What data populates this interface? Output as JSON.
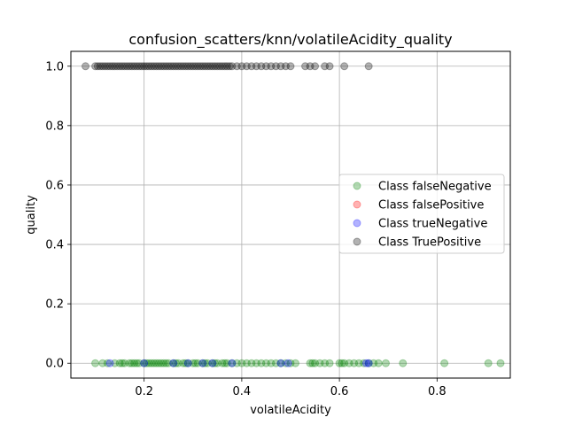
{
  "chart_data": {
    "type": "scatter",
    "title": "confusion_scatters/knn/volatileAcidity_quality",
    "xlabel": "volatileAcidity",
    "ylabel": "quality",
    "xlim": [
      0.05,
      0.95
    ],
    "ylim": [
      -0.05,
      1.05
    ],
    "xticks": [
      0.2,
      0.4,
      0.6,
      0.8
    ],
    "xtick_labels": [
      "0.2",
      "0.4",
      "0.6",
      "0.8"
    ],
    "yticks": [
      0.0,
      0.2,
      0.4,
      0.6,
      0.8,
      1.0
    ],
    "ytick_labels": [
      "0.0",
      "0.2",
      "0.4",
      "0.6",
      "0.8",
      "1.0"
    ],
    "grid": true,
    "legend_position": "center-right",
    "series": [
      {
        "name": "Class falseNegative",
        "color": "#008000",
        "x": [
          0.1,
          0.115,
          0.125,
          0.14,
          0.15,
          0.155,
          0.16,
          0.17,
          0.175,
          0.18,
          0.185,
          0.19,
          0.2,
          0.205,
          0.21,
          0.215,
          0.22,
          0.225,
          0.23,
          0.235,
          0.24,
          0.245,
          0.25,
          0.26,
          0.265,
          0.27,
          0.28,
          0.285,
          0.29,
          0.3,
          0.305,
          0.31,
          0.32,
          0.325,
          0.33,
          0.34,
          0.345,
          0.35,
          0.36,
          0.365,
          0.37,
          0.38,
          0.39,
          0.4,
          0.41,
          0.42,
          0.43,
          0.44,
          0.45,
          0.46,
          0.47,
          0.48,
          0.49,
          0.5,
          0.51,
          0.54,
          0.545,
          0.55,
          0.56,
          0.57,
          0.58,
          0.6,
          0.605,
          0.61,
          0.62,
          0.63,
          0.64,
          0.65,
          0.66,
          0.67,
          0.68,
          0.695,
          0.73,
          0.815,
          0.905,
          0.93
        ],
        "y": [
          0,
          0,
          0,
          0,
          0,
          0,
          0,
          0,
          0,
          0,
          0,
          0,
          0,
          0,
          0,
          0,
          0,
          0,
          0,
          0,
          0,
          0,
          0,
          0,
          0,
          0,
          0,
          0,
          0,
          0,
          0,
          0,
          0,
          0,
          0,
          0,
          0,
          0,
          0,
          0,
          0,
          0,
          0,
          0,
          0,
          0,
          0,
          0,
          0,
          0,
          0,
          0,
          0,
          0,
          0,
          0,
          0,
          0,
          0,
          0,
          0,
          0,
          0,
          0,
          0,
          0,
          0,
          0,
          0,
          0,
          0,
          0,
          0,
          0,
          0,
          0
        ]
      },
      {
        "name": "Class falsePositive",
        "color": "#ff0000",
        "x": [],
        "y": []
      },
      {
        "name": "Class trueNegative",
        "color": "#0000ff",
        "x": [
          0.13,
          0.2,
          0.26,
          0.29,
          0.32,
          0.34,
          0.38,
          0.48,
          0.495,
          0.655,
          0.66
        ],
        "y": [
          0,
          0,
          0,
          0,
          0,
          0,
          0,
          0,
          0,
          0,
          0
        ]
      },
      {
        "name": "Class TruePositive",
        "color": "#000000",
        "x": [
          0.08,
          0.1,
          0.105,
          0.11,
          0.115,
          0.12,
          0.125,
          0.13,
          0.135,
          0.14,
          0.145,
          0.15,
          0.155,
          0.16,
          0.165,
          0.17,
          0.175,
          0.18,
          0.185,
          0.19,
          0.195,
          0.2,
          0.205,
          0.21,
          0.215,
          0.22,
          0.225,
          0.23,
          0.235,
          0.24,
          0.245,
          0.25,
          0.255,
          0.26,
          0.265,
          0.27,
          0.275,
          0.28,
          0.285,
          0.29,
          0.295,
          0.3,
          0.305,
          0.31,
          0.315,
          0.32,
          0.325,
          0.33,
          0.335,
          0.34,
          0.345,
          0.35,
          0.355,
          0.36,
          0.365,
          0.37,
          0.375,
          0.38,
          0.39,
          0.4,
          0.41,
          0.42,
          0.43,
          0.44,
          0.45,
          0.46,
          0.47,
          0.48,
          0.49,
          0.5,
          0.53,
          0.54,
          0.55,
          0.57,
          0.58,
          0.61,
          0.66
        ],
        "y": [
          1,
          1,
          1,
          1,
          1,
          1,
          1,
          1,
          1,
          1,
          1,
          1,
          1,
          1,
          1,
          1,
          1,
          1,
          1,
          1,
          1,
          1,
          1,
          1,
          1,
          1,
          1,
          1,
          1,
          1,
          1,
          1,
          1,
          1,
          1,
          1,
          1,
          1,
          1,
          1,
          1,
          1,
          1,
          1,
          1,
          1,
          1,
          1,
          1,
          1,
          1,
          1,
          1,
          1,
          1,
          1,
          1,
          1,
          1,
          1,
          1,
          1,
          1,
          1,
          1,
          1,
          1,
          1,
          1,
          1,
          1,
          1,
          1,
          1,
          1,
          1,
          1
        ]
      }
    ]
  }
}
